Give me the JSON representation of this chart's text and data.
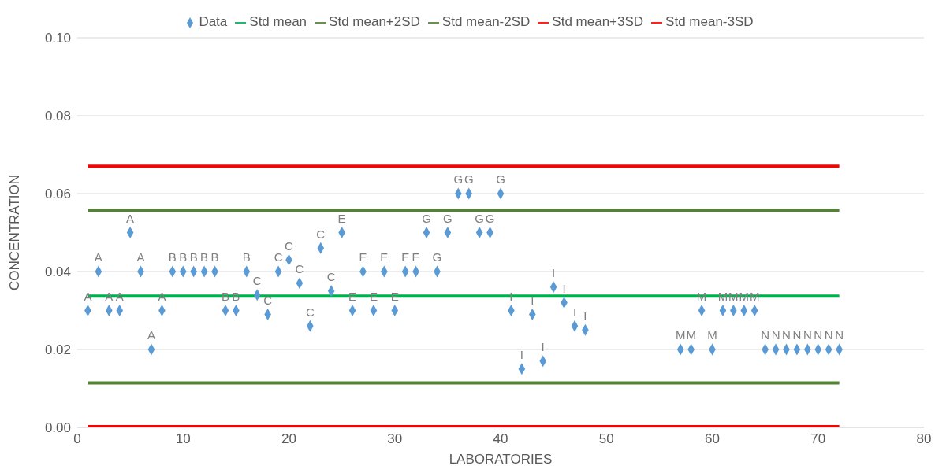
{
  "chart_data": {
    "type": "scatter",
    "xlabel": "LABORATORIES",
    "ylabel": "CONCENTRATION",
    "xlim": [
      0,
      80
    ],
    "xticks": [
      0,
      10,
      20,
      30,
      40,
      50,
      60,
      70,
      80
    ],
    "ylim": [
      0,
      0.1
    ],
    "yticks": [
      {
        "value": 0,
        "label": "0.00"
      },
      {
        "value": 0.02,
        "label": "0.02"
      },
      {
        "value": 0.04,
        "label": "0.04"
      },
      {
        "value": 0.06,
        "label": "0.06"
      },
      {
        "value": 0.08,
        "label": "0.08"
      },
      {
        "value": 0.1,
        "label": "0.10"
      }
    ],
    "grid": "y",
    "legend": "top",
    "series": [
      {
        "name": "Data",
        "color": "#5b9bd5",
        "marker": "diamond",
        "x": [
          1,
          2,
          3,
          4,
          5,
          6,
          7,
          8,
          9,
          10,
          11,
          12,
          13,
          14,
          15,
          16,
          17,
          18,
          19,
          20,
          21,
          22,
          23,
          24,
          25,
          26,
          27,
          28,
          29,
          30,
          31,
          32,
          33,
          34,
          35,
          36,
          37,
          38,
          39,
          40,
          41,
          42,
          43,
          44,
          45,
          46,
          47,
          48,
          57,
          58,
          59,
          60,
          61,
          62,
          63,
          64,
          65,
          66,
          67,
          68,
          69,
          70,
          71,
          72
        ],
        "values": [
          0.03,
          0.04,
          0.03,
          0.03,
          0.05,
          0.04,
          0.02,
          0.03,
          0.04,
          0.04,
          0.04,
          0.04,
          0.04,
          0.03,
          0.03,
          0.04,
          0.034,
          0.029,
          0.04,
          0.043,
          0.037,
          0.026,
          0.046,
          0.035,
          0.05,
          0.03,
          0.04,
          0.03,
          0.04,
          0.03,
          0.04,
          0.04,
          0.05,
          0.04,
          0.05,
          0.06,
          0.06,
          0.05,
          0.05,
          0.06,
          0.03,
          0.015,
          0.029,
          0.017,
          0.036,
          0.032,
          0.026,
          0.025,
          0.02,
          0.02,
          0.03,
          0.02,
          0.03,
          0.03,
          0.03,
          0.03,
          0.02,
          0.02,
          0.02,
          0.02,
          0.02,
          0.02,
          0.02,
          0.02
        ],
        "value_labels": [
          "A",
          "A",
          "A",
          "A",
          "A",
          "A",
          "A",
          "A",
          "B",
          "B",
          "B",
          "B",
          "B",
          "B",
          "B",
          "B",
          "C",
          "C",
          "C",
          "C",
          "C",
          "C",
          "C",
          "C",
          "E",
          "E",
          "E",
          "E",
          "E",
          "E",
          "E",
          "E",
          "G",
          "G",
          "G",
          "G",
          "G",
          "G",
          "G",
          "G",
          "I",
          "I",
          "I",
          "I",
          "I",
          "I",
          "I",
          "I",
          "M",
          "M",
          "M",
          "M",
          "M",
          "M",
          "M",
          "M",
          "N",
          "N",
          "N",
          "N",
          "N",
          "N",
          "N",
          "N"
        ]
      },
      {
        "name": "Std mean",
        "type": "line",
        "color": "#00b050",
        "line_style": "solid",
        "x": [
          1,
          72
        ],
        "values": [
          0.0337,
          0.0337
        ]
      },
      {
        "name": "Std mean+2SD",
        "type": "line",
        "color": "#548235",
        "line_style": "solid",
        "x": [
          1,
          72
        ],
        "values": [
          0.0557,
          0.0557
        ]
      },
      {
        "name": "Std mean-2SD",
        "type": "line",
        "color": "#548235",
        "line_style": "solid",
        "x": [
          1,
          72
        ],
        "values": [
          0.0114,
          0.0114
        ]
      },
      {
        "name": "Std mean+3SD",
        "type": "line",
        "color": "#ff0000",
        "line_style": "solid",
        "x": [
          1,
          72
        ],
        "values": [
          0.067,
          0.067
        ]
      },
      {
        "name": "Std mean-3SD",
        "type": "line",
        "color": "#ff0000",
        "line_style": "solid",
        "x": [
          1,
          72
        ],
        "values": [
          0.0002,
          0.0002
        ]
      }
    ]
  }
}
